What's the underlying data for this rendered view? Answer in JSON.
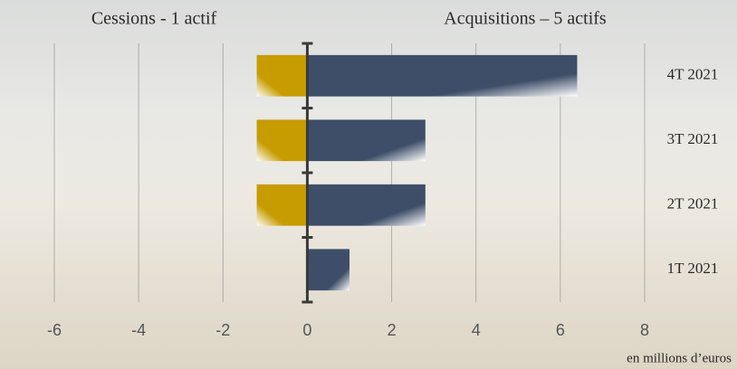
{
  "chart_data": {
    "type": "bar",
    "orientation": "horizontal",
    "annotations": [
      "Cessions - 1 actif",
      "Acquisitions – 5 actifs"
    ],
    "unit_label": "en millions d’euros",
    "categories": [
      "4T 2021",
      "3T 2021",
      "2T 2021",
      "1T 2021"
    ],
    "series": [
      {
        "name": "Cessions",
        "color": "#c69c00",
        "values": [
          -1.2,
          -1.2,
          -1.2,
          0
        ]
      },
      {
        "name": "Acquisitions",
        "color": "#3e4e68",
        "values": [
          6.4,
          2.8,
          2.8,
          1.0
        ]
      }
    ],
    "xlim": [
      -6,
      8
    ],
    "xticks": [
      -6,
      -4,
      -2,
      0,
      2,
      4,
      6,
      8
    ],
    "grid": true
  }
}
